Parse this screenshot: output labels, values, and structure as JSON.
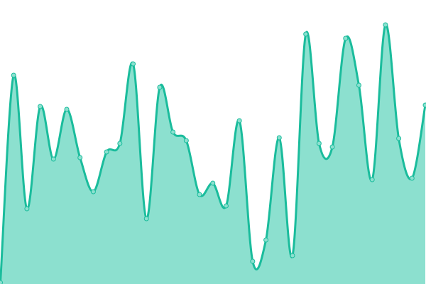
{
  "chart_data": {
    "type": "area",
    "title": "",
    "xlabel": "",
    "ylabel": "",
    "axes_visible": false,
    "grid": false,
    "legend": "none",
    "curve": "smooth",
    "ylim": [
      0,
      400
    ],
    "x": [
      0,
      1,
      2,
      3,
      4,
      5,
      6,
      7,
      8,
      9,
      10,
      11,
      12,
      13,
      14,
      15,
      16,
      17,
      18,
      19,
      20,
      21,
      22,
      23,
      24,
      25,
      26,
      27,
      28,
      29,
      30,
      31,
      32
    ],
    "values": [
      2,
      294,
      106,
      250,
      176,
      246,
      178,
      130,
      186,
      198,
      310,
      92,
      277,
      214,
      202,
      126,
      142,
      110,
      230,
      32,
      62,
      206,
      40,
      352,
      198,
      193,
      346,
      280,
      147,
      365,
      205,
      149,
      252
    ],
    "colors": {
      "line": "#1abc9c",
      "fill": "#8ce0cf",
      "point_fill": "#8ce0cf",
      "point_stroke": "#1abc9c"
    }
  }
}
